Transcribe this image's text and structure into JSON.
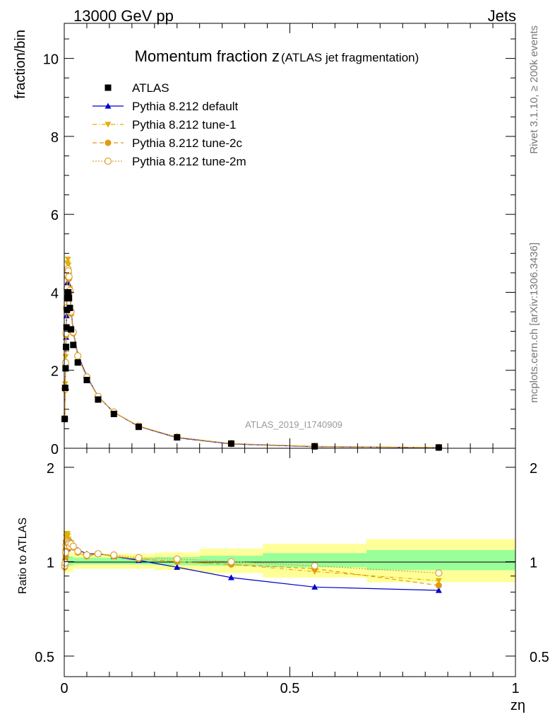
{
  "header": {
    "energy": "13000 GeV pp",
    "category": "Jets"
  },
  "side_labels": {
    "rivet": "Rivet 3.1.10, ≥ 200k events",
    "source": "mcplots.cern.ch [arXiv:1306.3436]"
  },
  "colors": {
    "atlas": "#000000",
    "default": "#0000cc",
    "tune1": "#e0b000",
    "tune2c": "#e09a10",
    "tune2m": "#e0a030",
    "band_inner": "#99ff99",
    "band_outer": "#ffff99"
  },
  "chart_data": [
    {
      "type": "line",
      "panel": "main",
      "title_main": "Momentum fraction z",
      "title_sub": "(ATLAS jet fragmentation)",
      "watermark": "ATLAS_2019_I1740909",
      "ylabel": "fraction/bin",
      "xlabel": "zη",
      "xlim": [
        0,
        1
      ],
      "ylim": [
        0,
        10.9
      ],
      "yticks": [
        0,
        2,
        4,
        6,
        8,
        10
      ],
      "ytick_labels": [
        "0",
        "2",
        "4",
        "6",
        "8",
        "10"
      ],
      "x": [
        0.001,
        0.002,
        0.003,
        0.004,
        0.005,
        0.006,
        0.007,
        0.008,
        0.009,
        0.0105,
        0.0125,
        0.015,
        0.02,
        0.03,
        0.05,
        0.075,
        0.11,
        0.165,
        0.25,
        0.37,
        0.555,
        0.83
      ],
      "legend": [
        {
          "label": "ATLAS",
          "marker": "square",
          "key": "atlas"
        },
        {
          "label": "Pythia 8.212 default",
          "marker": "triangle-up",
          "key": "default"
        },
        {
          "label": "Pythia 8.212 tune-1",
          "marker": "triangle-down",
          "key": "tune1"
        },
        {
          "label": "Pythia 8.212 tune-2c",
          "marker": "circle",
          "key": "tune2c"
        },
        {
          "label": "Pythia 8.212 tune-2m",
          "marker": "circle-open",
          "key": "tune2m"
        }
      ],
      "series": [
        {
          "name": "ATLAS",
          "values": [
            0.75,
            1.55,
            2.05,
            2.6,
            3.1,
            3.55,
            3.85,
            4.0,
            4.0,
            3.85,
            3.6,
            3.05,
            2.65,
            2.2,
            1.75,
            1.25,
            0.88,
            0.55,
            0.28,
            0.12,
            0.05,
            0.02
          ]
        },
        {
          "name": "Pythia 8.212 default",
          "values": [
            0.75,
            1.6,
            2.15,
            2.85,
            3.4,
            3.9,
            4.25,
            4.45,
            4.5,
            4.4,
            4.15,
            3.55,
            3.0,
            2.4,
            1.85,
            1.33,
            0.92,
            0.56,
            0.27,
            0.11,
            0.04,
            0.016
          ]
        },
        {
          "name": "Pythia 8.212 tune-1",
          "values": [
            0.78,
            1.65,
            2.35,
            3.1,
            3.8,
            4.35,
            4.75,
            4.85,
            4.7,
            4.45,
            4.1,
            3.5,
            2.95,
            2.35,
            1.82,
            1.32,
            0.92,
            0.57,
            0.28,
            0.12,
            0.046,
            0.018
          ]
        },
        {
          "name": "Pythia 8.212 tune-2c",
          "values": [
            0.76,
            1.5,
            2.15,
            2.9,
            3.55,
            4.05,
            4.4,
            4.55,
            4.5,
            4.35,
            4.0,
            3.45,
            2.95,
            2.35,
            1.82,
            1.32,
            0.92,
            0.57,
            0.28,
            0.12,
            0.047,
            0.017
          ]
        },
        {
          "name": "Pythia 8.212 tune-2m",
          "values": [
            0.76,
            1.52,
            2.2,
            2.95,
            3.6,
            4.1,
            4.45,
            4.6,
            4.55,
            4.4,
            4.05,
            3.5,
            2.98,
            2.37,
            1.83,
            1.33,
            0.93,
            0.57,
            0.29,
            0.12,
            0.05,
            0.019
          ]
        }
      ]
    },
    {
      "type": "line",
      "panel": "ratio",
      "ylabel": "Ratio to ATLAS",
      "xlabel": "zη",
      "xlim": [
        0,
        1
      ],
      "ylim": [
        0.43,
        2.3
      ],
      "yticks": [
        0.5,
        1,
        2
      ],
      "ytick_labels": [
        "0.5",
        "1",
        "2"
      ],
      "xticks": [
        0,
        0.5,
        1
      ],
      "xtick_labels": [
        "0",
        "0.5",
        "1"
      ],
      "x": [
        0.001,
        0.002,
        0.003,
        0.004,
        0.005,
        0.006,
        0.007,
        0.008,
        0.009,
        0.0105,
        0.0125,
        0.015,
        0.02,
        0.03,
        0.05,
        0.075,
        0.11,
        0.165,
        0.25,
        0.37,
        0.555,
        0.83
      ],
      "bands": [
        {
          "x_from": 0.0,
          "x_to": 0.01,
          "inner": [
            0.96,
            1.05
          ],
          "outer": [
            0.92,
            1.09
          ]
        },
        {
          "x_from": 0.01,
          "x_to": 0.02,
          "inner": [
            0.97,
            1.04
          ],
          "outer": [
            0.93,
            1.07
          ]
        },
        {
          "x_from": 0.02,
          "x_to": 0.2,
          "inner": [
            0.98,
            1.03
          ],
          "outer": [
            0.95,
            1.06
          ]
        },
        {
          "x_from": 0.2,
          "x_to": 0.3,
          "inner": [
            0.975,
            1.035
          ],
          "outer": [
            0.94,
            1.07
          ]
        },
        {
          "x_from": 0.3,
          "x_to": 0.44,
          "inner": [
            0.97,
            1.045
          ],
          "outer": [
            0.92,
            1.1
          ]
        },
        {
          "x_from": 0.44,
          "x_to": 0.67,
          "inner": [
            0.96,
            1.065
          ],
          "outer": [
            0.89,
            1.14
          ]
        },
        {
          "x_from": 0.67,
          "x_to": 1.0,
          "inner": [
            0.94,
            1.09
          ],
          "outer": [
            0.86,
            1.18
          ]
        }
      ],
      "series": [
        {
          "name": "Pythia 8.212 default",
          "values": [
            0.97,
            1.03,
            1.05,
            1.1,
            1.1,
            1.1,
            1.1,
            1.11,
            1.12,
            1.14,
            1.15,
            1.16,
            1.13,
            1.09,
            1.06,
            1.06,
            1.04,
            1.01,
            0.96,
            0.89,
            0.83,
            0.81
          ]
        },
        {
          "name": "Pythia 8.212 tune-1",
          "values": [
            1.0,
            1.08,
            1.15,
            1.2,
            1.23,
            1.23,
            1.23,
            1.21,
            1.18,
            1.16,
            1.14,
            1.15,
            1.11,
            1.07,
            1.04,
            1.06,
            1.04,
            1.02,
            1.0,
            0.98,
            0.93,
            0.87
          ]
        },
        {
          "name": "Pythia 8.212 tune-2c",
          "values": [
            0.96,
            0.98,
            1.04,
            1.1,
            1.14,
            1.14,
            1.15,
            1.14,
            1.13,
            1.13,
            1.11,
            1.13,
            1.11,
            1.07,
            1.04,
            1.06,
            1.04,
            1.02,
            1.0,
            0.98,
            0.95,
            0.84
          ]
        },
        {
          "name": "Pythia 8.212 tune-2m",
          "values": [
            0.97,
            0.99,
            1.07,
            1.13,
            1.16,
            1.15,
            1.16,
            1.15,
            1.14,
            1.14,
            1.12,
            1.14,
            1.12,
            1.08,
            1.05,
            1.06,
            1.05,
            1.03,
            1.02,
            1.0,
            0.97,
            0.92
          ]
        }
      ]
    }
  ]
}
